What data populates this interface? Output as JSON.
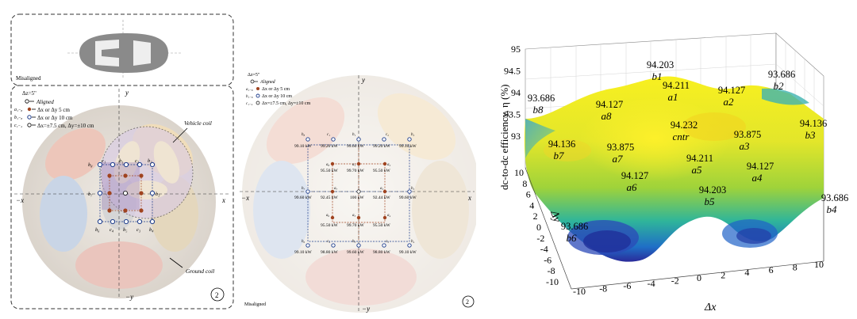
{
  "panel_a": {
    "misaligned_label": "Misaligned",
    "dz_label": "Δz=5\"",
    "legend": [
      {
        "symbol": "",
        "text": "Aligned"
      },
      {
        "symbol": "a₁₋₈",
        "text": "Δx or Δy 5 cm"
      },
      {
        "symbol": "b₁₋₈",
        "text": "Δx or Δy 10 cm"
      },
      {
        "symbol": "c₁₋₄",
        "text": "Δx=±7.5 cm, Δy=±10 cm"
      }
    ],
    "vehicle_coil_label": "Vehicle coil",
    "ground_coil_label": "Ground coil",
    "axis_y": "y",
    "axis_neg_y": "−y",
    "axis_x": "x",
    "axis_neg_x": "−x",
    "circled_number": "2",
    "grid_labels": {
      "top_row": [
        "b₈",
        "c₁",
        "b₁",
        "c₂",
        "b₂"
      ],
      "bottom_row": [
        "b₆",
        "c₄",
        "b₅",
        "c₃",
        "b₄"
      ],
      "left_mid": "b₇",
      "right_mid": "b₃"
    }
  },
  "panel_b": {
    "dz_label": "Δz=5\"",
    "legend": [
      {
        "symbol": "",
        "text": "Aligned"
      },
      {
        "symbol": "a₁₋₈",
        "text": "Δx or Δy 5 cm"
      },
      {
        "symbol": "b₁₋₈",
        "text": "Δx or Δy 10 cm"
      },
      {
        "symbol": "c₁₋₄",
        "text": "Δx=±7.5 cm, Δy=±10 cm"
      }
    ],
    "axis_y": "y",
    "axis_neg_y": "−y",
    "axis_x": "x",
    "axis_neg_x": "−x",
    "misaligned_label": "Misaligned",
    "circled_number": "2",
    "row1": {
      "labels": [
        "b₈",
        "c₁",
        "b₁",
        "c₂",
        "b₂"
      ],
      "values": [
        "99.10 kW",
        "99.20 kW",
        "99.60 kW",
        "99.20 kW",
        "99.10 kW"
      ]
    },
    "row2": {
      "labels": [
        "a₈",
        "a₁",
        "a₂"
      ],
      "values": [
        "95.50 kW",
        "99.70 kW",
        "95.50 kW"
      ]
    },
    "row3": {
      "labels": [
        "b₇",
        "a₇",
        "",
        "a₃",
        "b₃"
      ],
      "values": [
        "99.60 kW",
        "92.45 kW",
        "100 kW",
        "92.44 kW",
        "99.60 kW"
      ]
    },
    "row4": {
      "labels": [
        "a₆",
        "a₅",
        "a₄"
      ],
      "values": [
        "95.50 kW",
        "99.70 kW",
        "95.50 kW"
      ]
    },
    "row5": {
      "labels": [
        "b₆",
        "c₄",
        "b₅",
        "c₃",
        "b₄"
      ],
      "values": [
        "99.10 kW",
        "98.80 kW",
        "99.60 kW",
        "98.80 kW",
        "99.10 kW"
      ]
    }
  },
  "panel_c": {
    "z_axis_label": "dc-to-dc efficiency, η (%)",
    "x_axis_label": "Δx",
    "y_axis_label": "Δy",
    "z_ticks": [
      "95",
      "94.5",
      "94",
      "93.5",
      "93"
    ],
    "x_ticks": [
      "-10",
      "-8",
      "-6",
      "-4",
      "-2",
      "0",
      "2",
      "4",
      "6",
      "8",
      "10"
    ],
    "y_ticks": [
      "10",
      "8",
      "6",
      "4",
      "2",
      "0",
      "-2",
      "-4",
      "-6",
      "-8",
      "-10"
    ],
    "annotations": [
      {
        "value": "94.203",
        "name": "b1"
      },
      {
        "value": "93.686",
        "name": "b8"
      },
      {
        "value": "94.127",
        "name": "a8"
      },
      {
        "value": "94.211",
        "name": "a1"
      },
      {
        "value": "94.127",
        "name": "a2"
      },
      {
        "value": "93.686",
        "name": "b2"
      },
      {
        "value": "94.136",
        "name": "b3"
      },
      {
        "value": "94.232",
        "name": "cntr"
      },
      {
        "value": "93.875",
        "name": "a3"
      },
      {
        "value": "94.136",
        "name": "b7"
      },
      {
        "value": "93.875",
        "name": "a7"
      },
      {
        "value": "94.211",
        "name": "a5"
      },
      {
        "value": "94.127",
        "name": "a6"
      },
      {
        "value": "94.127",
        "name": "a4"
      },
      {
        "value": "94.203",
        "name": "b5"
      },
      {
        "value": "93.686",
        "name": "b4"
      },
      {
        "value": "93.686",
        "name": "b6"
      }
    ]
  },
  "chart_data": {
    "type": "surface",
    "xlabel": "Δx",
    "ylabel": "Δy",
    "zlabel": "dc-to-dc efficiency, η (%)",
    "xlim": [
      -10,
      10
    ],
    "ylim": [
      -10,
      10
    ],
    "zlim": [
      93,
      95
    ],
    "points": [
      {
        "name": "cntr",
        "x": 0,
        "y": 0,
        "z": 94.232
      },
      {
        "name": "a1",
        "x": 0,
        "y": 5,
        "z": 94.211
      },
      {
        "name": "a2",
        "x": 5,
        "y": 5,
        "z": 94.127
      },
      {
        "name": "a3",
        "x": 5,
        "y": 0,
        "z": 93.875
      },
      {
        "name": "a4",
        "x": 5,
        "y": -5,
        "z": 94.127
      },
      {
        "name": "a5",
        "x": 0,
        "y": -5,
        "z": 94.211
      },
      {
        "name": "a6",
        "x": -5,
        "y": -5,
        "z": 94.127
      },
      {
        "name": "a7",
        "x": -5,
        "y": 0,
        "z": 93.875
      },
      {
        "name": "a8",
        "x": -5,
        "y": 5,
        "z": 94.127
      },
      {
        "name": "b1",
        "x": 0,
        "y": 10,
        "z": 94.203
      },
      {
        "name": "b2",
        "x": 10,
        "y": 10,
        "z": 93.686
      },
      {
        "name": "b3",
        "x": 10,
        "y": 0,
        "z": 94.136
      },
      {
        "name": "b4",
        "x": 10,
        "y": -10,
        "z": 93.686
      },
      {
        "name": "b5",
        "x": 0,
        "y": -10,
        "z": 94.203
      },
      {
        "name": "b6",
        "x": -10,
        "y": -10,
        "z": 93.686
      },
      {
        "name": "b7",
        "x": -10,
        "y": 0,
        "z": 94.136
      },
      {
        "name": "b8",
        "x": -10,
        "y": 10,
        "z": 93.686
      }
    ]
  }
}
